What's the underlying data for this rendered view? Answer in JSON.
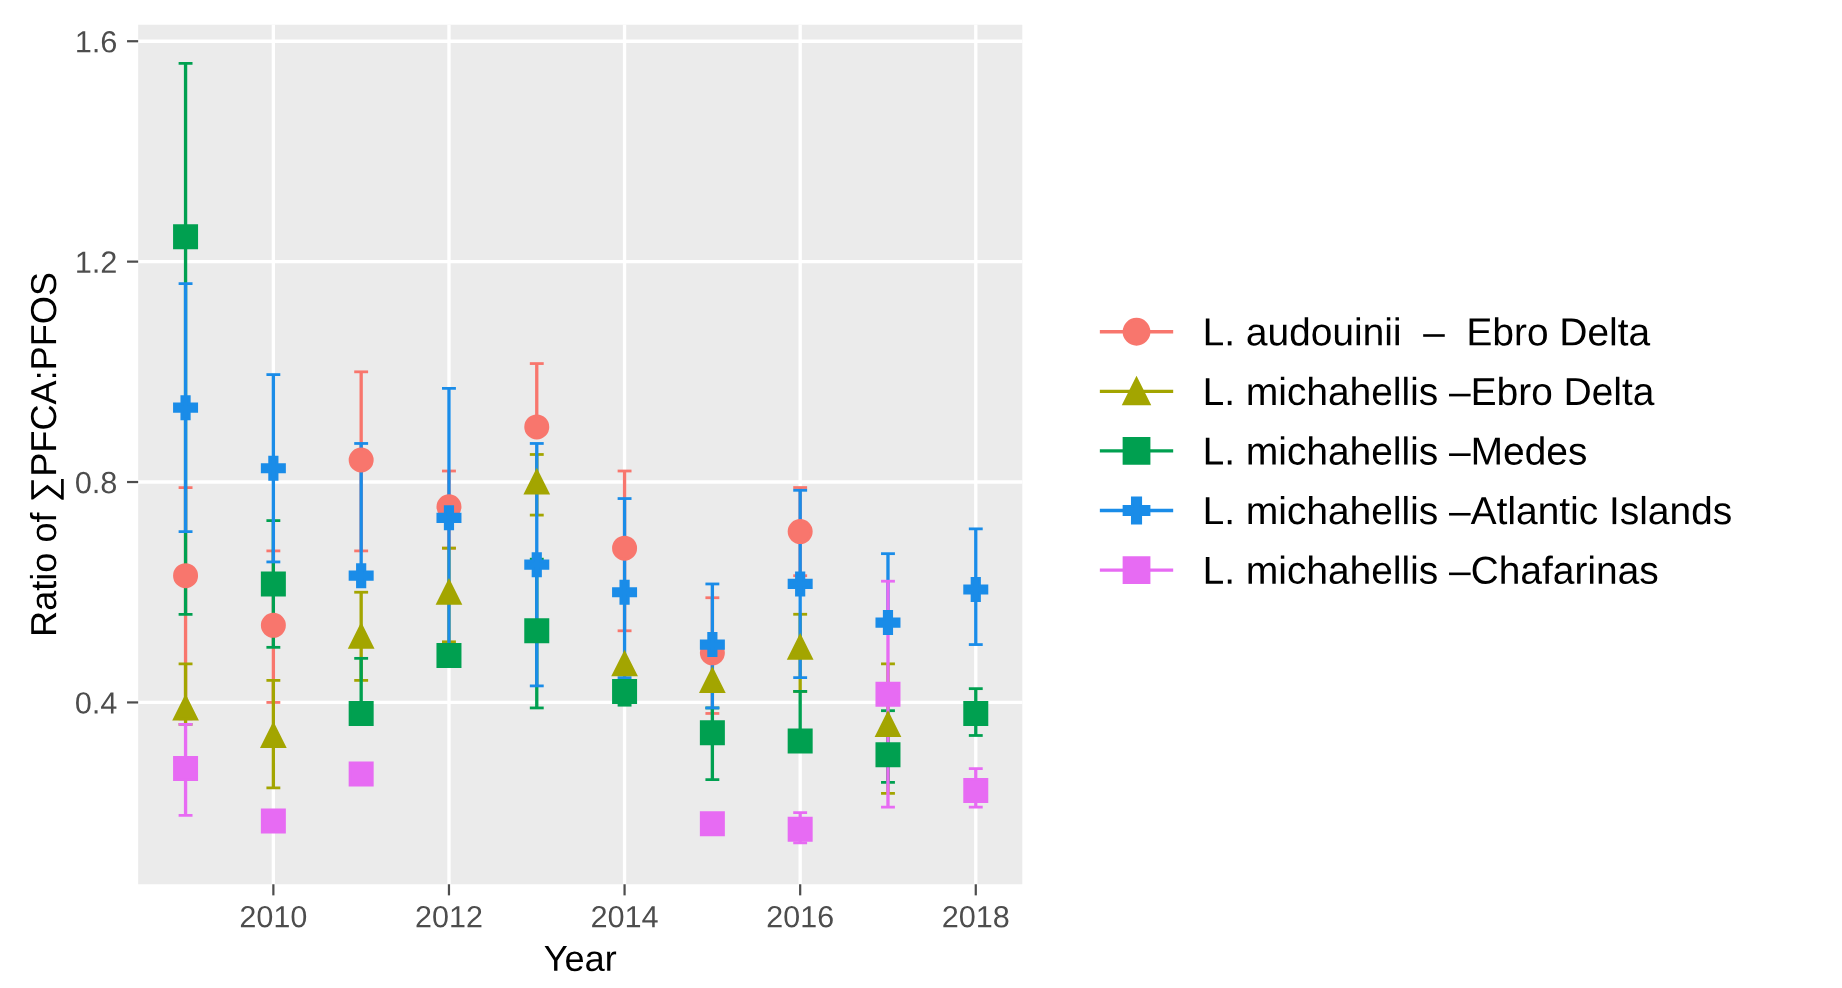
{
  "chart_data": {
    "type": "scatter",
    "xlabel": "Year",
    "ylabel": "Ratio of ∑PFCA:PFOS",
    "x": [
      2009,
      2010,
      2011,
      2012,
      2013,
      2014,
      2015,
      2016,
      2017,
      2018
    ],
    "xlim": [
      2008.46,
      2018.53
    ],
    "xticks": [
      2010,
      2012,
      2014,
      2016,
      2018
    ],
    "ylim": [
      0.07,
      1.63
    ],
    "yticks": [
      0.4,
      0.8,
      1.2,
      1.6
    ],
    "grid": true,
    "legend": "right",
    "series": [
      {
        "name": "L. audouinii  –  Ebro Delta",
        "color": "#f8766d",
        "marker": "circle",
        "values": [
          0.63,
          0.54,
          0.84,
          0.755,
          0.9,
          0.68,
          0.49,
          0.71,
          null,
          null
        ],
        "errors": [
          [
            0.37,
            0.79
          ],
          [
            0.4,
            0.675
          ],
          [
            0.675,
            1.0
          ],
          [
            0.68,
            0.82
          ],
          [
            0.9,
            1.015
          ],
          [
            0.53,
            0.82
          ],
          [
            0.38,
            0.59
          ],
          [
            0.63,
            0.79
          ],
          null,
          null
        ]
      },
      {
        "name": "L. michahellis –Ebro Delta",
        "color": "#a3a500",
        "marker": "triangle",
        "values": [
          0.39,
          0.34,
          0.52,
          0.6,
          0.8,
          0.47,
          0.44,
          0.5,
          0.36,
          null
        ],
        "errors": [
          [
            0.36,
            0.47
          ],
          [
            0.245,
            0.44
          ],
          [
            0.44,
            0.6
          ],
          [
            0.51,
            0.68
          ],
          [
            0.74,
            0.85
          ],
          null,
          null,
          [
            0.42,
            0.56
          ],
          [
            0.235,
            0.47
          ],
          null
        ]
      },
      {
        "name": "L. michahellis –Medes",
        "color": "#00a050",
        "marker": "square",
        "values": [
          1.245,
          0.615,
          0.38,
          0.485,
          0.53,
          0.42,
          0.345,
          0.33,
          0.305,
          0.38
        ],
        "errors": [
          [
            0.56,
            1.56
          ],
          [
            0.5,
            0.73
          ],
          [
            0.38,
            0.48
          ],
          null,
          [
            0.39,
            0.66
          ],
          [
            0.395,
            0.44
          ],
          [
            0.26,
            0.39
          ],
          [
            0.33,
            0.42
          ],
          [
            0.255,
            0.385
          ],
          [
            0.34,
            0.425
          ]
        ]
      },
      {
        "name": "L. michahellis –Atlantic Islands",
        "color": "#1a8ce8",
        "marker": "cross",
        "values": [
          0.935,
          0.825,
          0.63,
          0.735,
          0.65,
          0.6,
          0.505,
          0.615,
          0.545,
          0.605
        ],
        "errors": [
          [
            0.71,
            1.16
          ],
          [
            0.655,
            0.995
          ],
          [
            0.63,
            0.87
          ],
          [
            0.5,
            0.97
          ],
          [
            0.43,
            0.87
          ],
          [
            0.445,
            0.77
          ],
          [
            0.39,
            0.615
          ],
          [
            0.445,
            0.785
          ],
          [
            0.545,
            0.67
          ],
          [
            0.505,
            0.715
          ]
        ]
      },
      {
        "name": "L. michahellis –Chafarinas",
        "color": "#e76bf3",
        "marker": "square",
        "values": [
          0.28,
          0.185,
          0.27,
          null,
          null,
          null,
          0.18,
          0.17,
          0.415,
          0.24
        ],
        "errors": [
          [
            0.195,
            0.36
          ],
          null,
          null,
          null,
          null,
          null,
          null,
          [
            0.145,
            0.2
          ],
          [
            0.21,
            0.62
          ],
          [
            0.21,
            0.28
          ]
        ]
      }
    ]
  }
}
